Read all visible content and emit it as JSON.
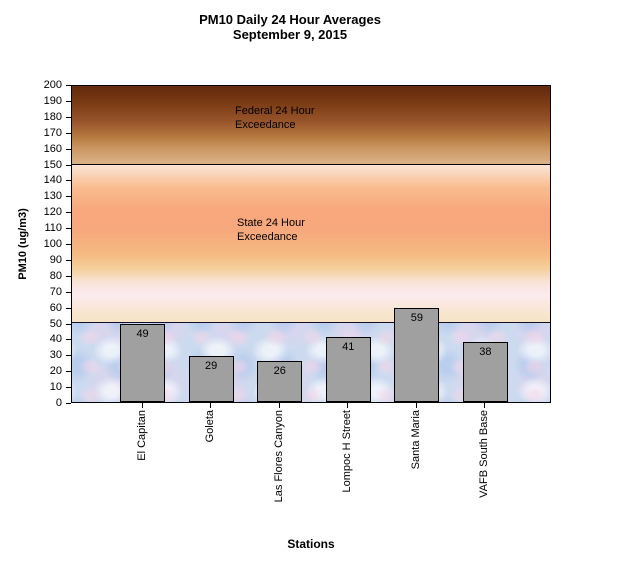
{
  "chart_data": {
    "type": "bar",
    "title": "PM10 Daily 24 Hour Averages",
    "subtitle": "September 9, 2015",
    "categories": [
      "El Capitan",
      "Goleta",
      "Las Flores Canyon",
      "Lompoc H Street",
      "Santa Maria",
      "VAFB South Base"
    ],
    "values": [
      49,
      29,
      26,
      41,
      59,
      38
    ],
    "xlabel": "Stations",
    "ylabel": "PM10 (ug/m3)",
    "ylim": [
      0,
      200
    ],
    "yticks": [
      0,
      10,
      20,
      30,
      40,
      50,
      60,
      70,
      80,
      90,
      100,
      110,
      120,
      130,
      140,
      150,
      160,
      170,
      180,
      190,
      200
    ],
    "grid": false,
    "legend": null,
    "bar_color": "#a0a0a0",
    "zones": [
      {
        "name": "federal",
        "label": "Federal 24 Hour\nExceedance",
        "from": 150,
        "to": 200,
        "color_top": "#63290b",
        "color_bottom": "#dab288"
      },
      {
        "name": "state",
        "label": "State 24 Hour\nExceedance",
        "from": 50,
        "to": 150,
        "color": "#f8a87c"
      },
      {
        "name": "safe",
        "label": "",
        "from": 0,
        "to": 50,
        "color": "#ccdaef"
      }
    ]
  }
}
